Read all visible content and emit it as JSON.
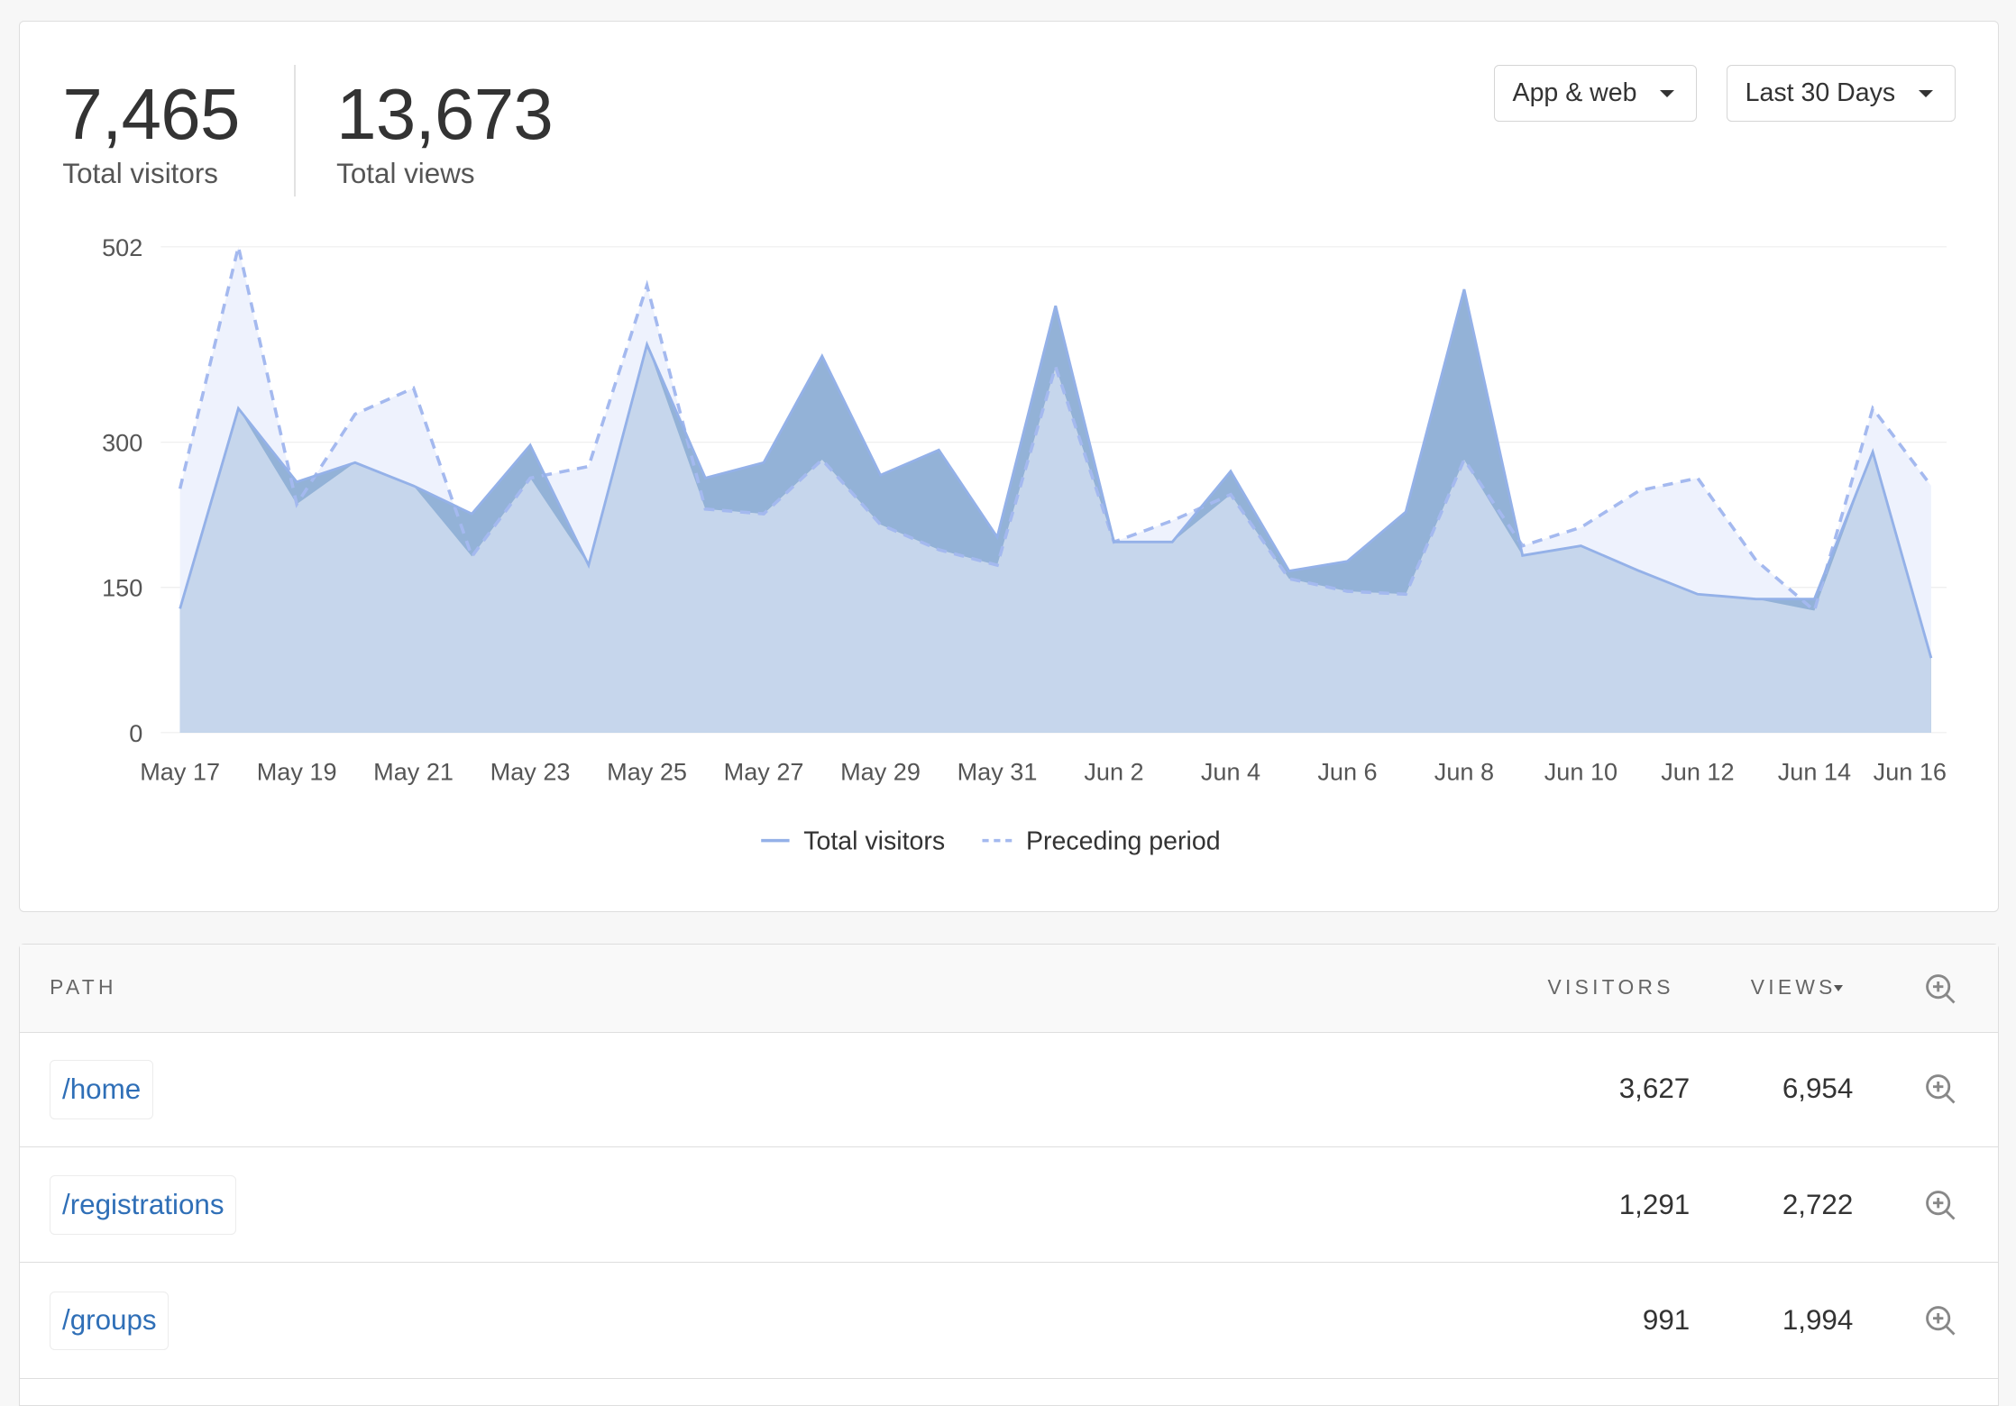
{
  "stats": {
    "visitors_value": "7,465",
    "visitors_label": "Total visitors",
    "views_value": "13,673",
    "views_label": "Total views"
  },
  "filters": {
    "platform": "App & web",
    "range": "Last 30 Days"
  },
  "colors": {
    "visitors_line": "#94b1e8",
    "preceding_line": "#a4b9ef",
    "visitors_only_fill": "#93b2d7",
    "overlap_fill": "#c6d6ec",
    "preceding_only_fill": "#eef2fd",
    "link": "#2f6fb7"
  },
  "chart_data": {
    "type": "area",
    "x": [
      "May 17",
      "May 18",
      "May 19",
      "May 20",
      "May 21",
      "May 22",
      "May 23",
      "May 24",
      "May 25",
      "May 26",
      "May 27",
      "May 28",
      "May 29",
      "May 30",
      "May 31",
      "Jun 1",
      "Jun 2",
      "Jun 3",
      "Jun 4",
      "Jun 5",
      "Jun 6",
      "Jun 7",
      "Jun 8",
      "Jun 9",
      "Jun 10",
      "Jun 11",
      "Jun 12",
      "Jun 13",
      "Jun 14",
      "Jun 15",
      "Jun 16"
    ],
    "xtick_labels": [
      "May 17",
      "May 19",
      "May 21",
      "May 23",
      "May 25",
      "May 27",
      "May 29",
      "May 31",
      "Jun 2",
      "Jun 4",
      "Jun 6",
      "Jun 8",
      "Jun 10",
      "Jun 12",
      "Jun 14",
      "Jun 16"
    ],
    "yticks": [
      0,
      150,
      300,
      502
    ],
    "ylim": [
      0,
      502
    ],
    "grid": true,
    "legend_position": "bottom",
    "series": [
      {
        "name": "Total visitors",
        "style": "solid",
        "values": [
          128,
          335,
          259,
          279,
          255,
          226,
          297,
          173,
          401,
          263,
          279,
          389,
          266,
          292,
          202,
          441,
          197,
          197,
          270,
          167,
          177,
          228,
          458,
          183,
          193,
          167,
          143,
          138,
          138,
          290,
          77
        ]
      },
      {
        "name": "Preceding period",
        "style": "dashed",
        "values": [
          252,
          502,
          236,
          329,
          356,
          182,
          263,
          275,
          462,
          231,
          226,
          282,
          215,
          189,
          173,
          378,
          197,
          219,
          246,
          159,
          146,
          143,
          282,
          193,
          212,
          250,
          263,
          178,
          126,
          335,
          255
        ]
      }
    ]
  },
  "table": {
    "headers": {
      "path": "PATH",
      "visitors": "VISITORS",
      "views": "VIEWS"
    },
    "rows": [
      {
        "path": "/home",
        "visitors": "3,627",
        "views": "6,954"
      },
      {
        "path": "/registrations",
        "visitors": "1,291",
        "views": "2,722"
      },
      {
        "path": "/groups",
        "visitors": "991",
        "views": "1,994"
      }
    ]
  }
}
